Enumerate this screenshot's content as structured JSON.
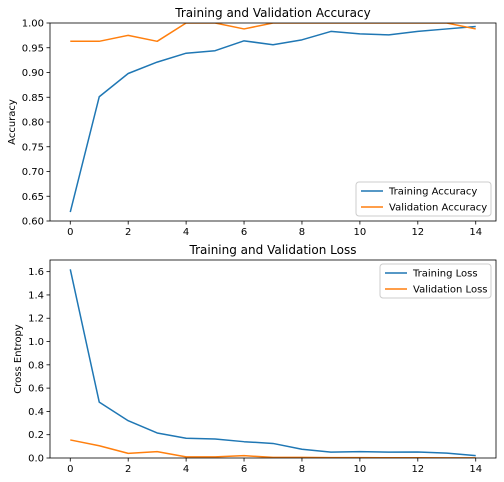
{
  "chart_data": [
    {
      "type": "line",
      "title": "Training and Validation Accuracy",
      "xlabel": "",
      "ylabel": "Accuracy",
      "x": [
        0,
        1,
        2,
        3,
        4,
        5,
        6,
        7,
        8,
        9,
        10,
        11,
        12,
        13,
        14
      ],
      "xlim": [
        -0.7,
        14.7
      ],
      "ylim": [
        0.6,
        1.0
      ],
      "xticks": [
        0,
        2,
        4,
        6,
        8,
        10,
        12,
        14
      ],
      "xtick_labels": [
        "0",
        "2",
        "4",
        "6",
        "8",
        "10",
        "12",
        "14"
      ],
      "yticks": [
        0.6,
        0.65,
        0.7,
        0.75,
        0.8,
        0.85,
        0.9,
        0.95,
        1.0
      ],
      "ytick_labels": [
        "0.60",
        "0.65",
        "0.70",
        "0.75",
        "0.80",
        "0.85",
        "0.90",
        "0.95",
        "1.00"
      ],
      "grid": false,
      "legend_position": "lower-right",
      "series": [
        {
          "name": "Training Accuracy",
          "color": "#1f77b4",
          "values": [
            0.618,
            0.851,
            0.898,
            0.921,
            0.939,
            0.944,
            0.964,
            0.956,
            0.966,
            0.983,
            0.978,
            0.976,
            0.983,
            0.988,
            0.993
          ]
        },
        {
          "name": "Validation Accuracy",
          "color": "#ff7f0e",
          "values": [
            0.963,
            0.963,
            0.975,
            0.963,
            1.0,
            1.0,
            0.988,
            1.0,
            1.0,
            1.0,
            1.0,
            1.0,
            1.0,
            1.0,
            0.988
          ]
        }
      ]
    },
    {
      "type": "line",
      "title": "Training and Validation Loss",
      "xlabel": "",
      "ylabel": "Cross Entropy",
      "x": [
        0,
        1,
        2,
        3,
        4,
        5,
        6,
        7,
        8,
        9,
        10,
        11,
        12,
        13,
        14
      ],
      "xlim": [
        -0.7,
        14.7
      ],
      "ylim": [
        0.0,
        1.7
      ],
      "xticks": [
        0,
        2,
        4,
        6,
        8,
        10,
        12,
        14
      ],
      "xtick_labels": [
        "0",
        "2",
        "4",
        "6",
        "8",
        "10",
        "12",
        "14"
      ],
      "yticks": [
        0.0,
        0.2,
        0.4,
        0.6,
        0.8,
        1.0,
        1.2,
        1.4,
        1.6
      ],
      "ytick_labels": [
        "0.0",
        "0.2",
        "0.4",
        "0.6",
        "0.8",
        "1.0",
        "1.2",
        "1.4",
        "1.6"
      ],
      "grid": false,
      "legend_position": "upper-right",
      "series": [
        {
          "name": "Training Loss",
          "color": "#1f77b4",
          "values": [
            1.62,
            0.48,
            0.32,
            0.215,
            0.17,
            0.163,
            0.14,
            0.125,
            0.075,
            0.05,
            0.055,
            0.05,
            0.052,
            0.042,
            0.02
          ]
        },
        {
          "name": "Validation Loss",
          "color": "#ff7f0e",
          "values": [
            0.155,
            0.105,
            0.04,
            0.055,
            0.01,
            0.01,
            0.02,
            0.005,
            0.005,
            0.003,
            0.003,
            0.002,
            0.002,
            0.001,
            0.001
          ]
        }
      ]
    }
  ]
}
